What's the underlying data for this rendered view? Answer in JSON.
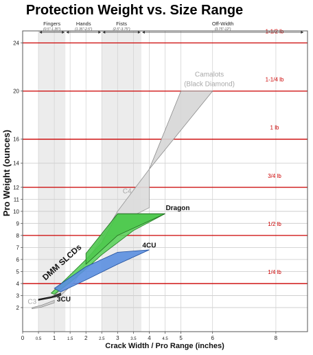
{
  "chart_data": {
    "type": "area",
    "title": "Protection Weight vs. Size Range",
    "xlabel": "Crack Width / Pro Range (inches)",
    "ylabel": "Pro Weight (ounces)",
    "xlim": [
      0,
      9
    ],
    "ylim": [
      0,
      25
    ],
    "x_ticks": [
      {
        "v": 0,
        "label": "0"
      },
      {
        "v": 0.5,
        "label": "0.5"
      },
      {
        "v": 1,
        "label": "1"
      },
      {
        "v": 1.5,
        "label": "1.5"
      },
      {
        "v": 2,
        "label": "2"
      },
      {
        "v": 2.5,
        "label": "2.5"
      },
      {
        "v": 3,
        "label": "3"
      },
      {
        "v": 3.5,
        "label": "3.5"
      },
      {
        "v": 4,
        "label": "4"
      },
      {
        "v": 4.5,
        "label": "4.5"
      },
      {
        "v": 5,
        "label": "5"
      },
      {
        "v": 6,
        "label": "6"
      },
      {
        "v": 8,
        "label": "8"
      }
    ],
    "y_ticks": [
      2,
      3,
      4,
      5,
      6,
      7,
      8,
      9,
      10,
      11,
      12,
      14,
      16,
      20,
      24
    ],
    "grid": true,
    "size_bands": [
      {
        "name": "Fingers",
        "range_label": "(0.5\"-1.35\")",
        "x0": 0.5,
        "x1": 1.35,
        "shaded": true
      },
      {
        "name": "Hands",
        "range_label": "(1.35\"-2.5\")",
        "x0": 1.35,
        "x1": 2.5,
        "shaded": false
      },
      {
        "name": "Fists",
        "range_label": "(2.5\"-3.75\")",
        "x0": 2.5,
        "x1": 3.75,
        "shaded": true
      },
      {
        "name": "Off-Width",
        "range_label": "(3.75\"-12\")",
        "x0": 3.75,
        "x1": 8.9,
        "shaded": false
      }
    ],
    "reference_lines": [
      {
        "y": 4,
        "label": "1/4 lb"
      },
      {
        "y": 8,
        "label": "1/2 lb"
      },
      {
        "y": 12,
        "label": "3/4 lb"
      },
      {
        "y": 16,
        "label": "1 lb"
      },
      {
        "y": 20,
        "label": "1-1/4 lb"
      },
      {
        "y": 24,
        "label": "1-1/2 lb"
      }
    ],
    "series": [
      {
        "name": "Camalots (Black Diamond)",
        "fill": "#d6d6d6",
        "stroke": "#8a8a8a",
        "top": [
          [
            1.0,
            3.0
          ],
          [
            1.5,
            4.3
          ],
          [
            2.5,
            7.2
          ],
          [
            3.0,
            10.0
          ],
          [
            4.0,
            13.5
          ],
          [
            5.0,
            20.0
          ],
          [
            6.0,
            20.0
          ]
        ],
        "bottom": [
          [
            6.0,
            20.0
          ],
          [
            4.0,
            13.5
          ],
          [
            3.0,
            10.0
          ],
          [
            2.5,
            7.8
          ],
          [
            1.6,
            4.0
          ],
          [
            1.2,
            3.0
          ]
        ]
      },
      {
        "name": "C4",
        "fill": "#dcdcdc",
        "stroke": "#9a9a9a",
        "top": [
          [
            2.5,
            7.6
          ],
          [
            3.0,
            10.0
          ],
          [
            4.0,
            13.5
          ]
        ],
        "bottom": [
          [
            4.0,
            10.3
          ],
          [
            3.0,
            9.0
          ],
          [
            2.5,
            7.6
          ]
        ]
      },
      {
        "name": "C3",
        "fill": "#cfcfcf",
        "stroke": "#888888",
        "top": [
          [
            0.3,
            2.0
          ],
          [
            0.6,
            2.2
          ],
          [
            1.0,
            2.6
          ]
        ],
        "bottom": [
          [
            1.0,
            2.4
          ],
          [
            0.6,
            2.05
          ],
          [
            0.3,
            1.9
          ]
        ]
      },
      {
        "name": "DMM SLCDs",
        "fill": "#5dd35d",
        "stroke": "#1f7a1f",
        "top": [
          [
            0.9,
            3.2
          ],
          [
            1.3,
            4.2
          ],
          [
            2.0,
            6.0
          ],
          [
            2.5,
            7.4
          ],
          [
            3.0,
            9.8
          ],
          [
            4.5,
            9.8
          ]
        ],
        "bottom": [
          [
            4.5,
            9.8
          ],
          [
            3.5,
            8.4
          ],
          [
            2.5,
            6.4
          ],
          [
            2.0,
            5.2
          ],
          [
            1.5,
            4.1
          ],
          [
            1.0,
            3.1
          ]
        ]
      },
      {
        "name": "Dragon",
        "fill": "#4fc94f",
        "stroke": "#1f6a1f",
        "top": [
          [
            2.0,
            6.5
          ],
          [
            3.0,
            9.8
          ],
          [
            4.5,
            9.8
          ]
        ],
        "bottom": [
          [
            4.5,
            9.8
          ],
          [
            3.0,
            8.0
          ],
          [
            2.0,
            5.6
          ]
        ]
      },
      {
        "name": "4CU",
        "fill": "#5b8fe0",
        "stroke": "#1e4c9a",
        "top": [
          [
            1.0,
            3.6
          ],
          [
            2.0,
            5.4
          ],
          [
            3.0,
            6.6
          ],
          [
            4.0,
            6.8
          ]
        ],
        "bottom": [
          [
            4.0,
            6.8
          ],
          [
            3.0,
            5.6
          ],
          [
            2.0,
            4.3
          ],
          [
            1.2,
            3.3
          ]
        ]
      },
      {
        "name": "3CU",
        "fill": "#333333",
        "stroke": "#000000",
        "top": [
          [
            0.5,
            2.7
          ],
          [
            0.9,
            2.9
          ],
          [
            1.2,
            3.2
          ]
        ],
        "bottom": [
          [
            1.2,
            3.0
          ],
          [
            0.9,
            2.8
          ],
          [
            0.5,
            2.6
          ]
        ]
      }
    ],
    "series_labels": [
      {
        "text": "Camalots",
        "x": 5.9,
        "y": 21.2,
        "color": "#a8a8a8",
        "size": 10,
        "weight": "normal"
      },
      {
        "text": "(Black Diamond)",
        "x": 5.9,
        "y": 20.4,
        "color": "#a8a8a8",
        "size": 10,
        "weight": "normal"
      },
      {
        "text": "C4",
        "x": 3.3,
        "y": 11.5,
        "color": "#a8a8a8",
        "size": 10,
        "weight": "normal"
      },
      {
        "text": "C3",
        "x": 0.3,
        "y": 2.3,
        "color": "#a8a8a8",
        "size": 10,
        "weight": "normal"
      },
      {
        "text": "Dragon",
        "x": 4.9,
        "y": 10.1,
        "color": "#111111",
        "size": 10,
        "weight": "bold"
      },
      {
        "text": "4CU",
        "x": 4.0,
        "y": 7.0,
        "color": "#111111",
        "size": 10,
        "weight": "bold"
      },
      {
        "text": "3CU",
        "x": 1.3,
        "y": 2.5,
        "color": "#111111",
        "size": 10,
        "weight": "bold"
      }
    ],
    "dmm_label": {
      "text": "DMM SLCDs",
      "x": 1.3,
      "y": 5.6
    }
  }
}
